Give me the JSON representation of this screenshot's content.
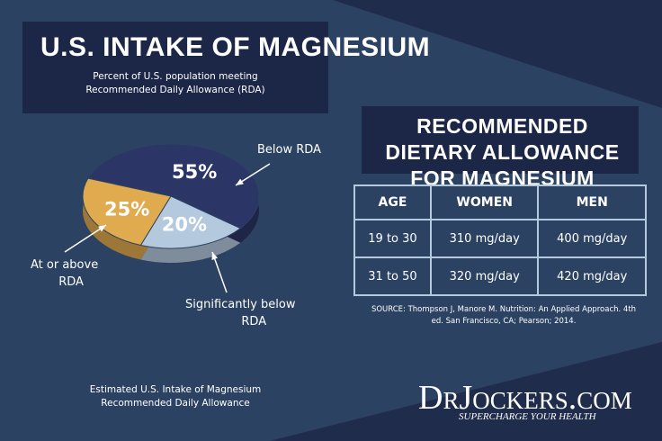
{
  "chart_data": {
    "type": "pie",
    "title": "U.S. INTAKE OF MAGNESIUM",
    "subtitle": "Percent of U.S. population meeting Recommended Daily Allowance (RDA)",
    "categories": [
      "Below RDA",
      "At or above RDA",
      "Significantly below RDA"
    ],
    "values": [
      55,
      25,
      20
    ],
    "value_labels": [
      "55%",
      "25%",
      "20%"
    ],
    "colors": [
      "#2b3566",
      "#e0aa4e",
      "#b4c8de"
    ],
    "caption": "Estimated U.S. Intake of Magnesium Recommended Daily Allowance"
  },
  "table": {
    "title": "RECOMMENDED DIETARY ALLOWANCE FOR MAGNESIUM",
    "header": [
      "AGE",
      "WOMEN",
      "MEN"
    ],
    "rows": [
      [
        "19 to 30",
        "310 mg/day",
        "400 mg/day"
      ],
      [
        "31 to 50",
        "320 mg/day",
        "420 mg/day"
      ]
    ],
    "source": "SOURCE: Thompson J, Manore M. Nutrition: An Applied Approach. 4th ed. San Francisco, CA; Pearson; 2014."
  },
  "brand": {
    "name": "DrJockers.com",
    "tagline": "SUPERCHARGE YOUR HEALTH"
  }
}
